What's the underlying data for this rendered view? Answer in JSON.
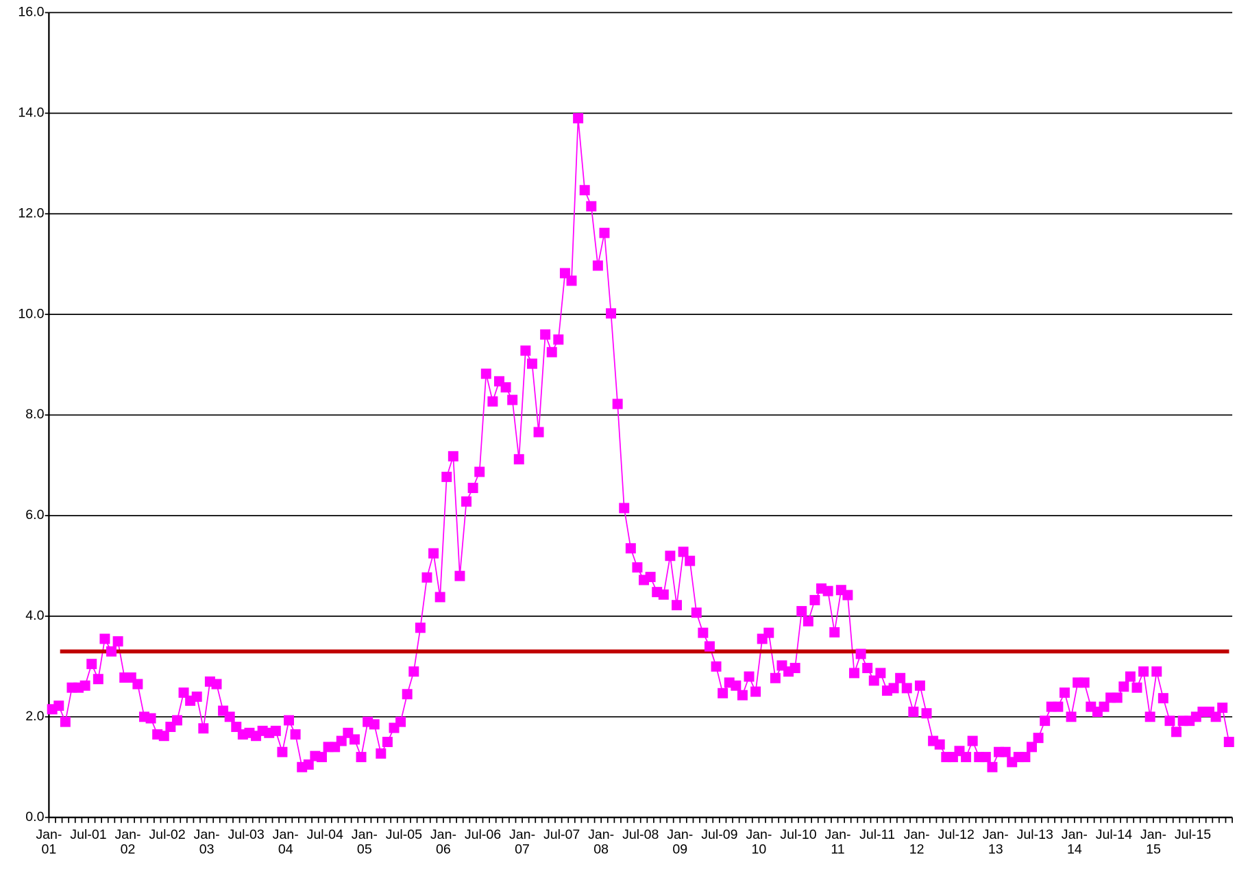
{
  "chart_data": {
    "type": "line",
    "categories": [
      "Jan-01",
      null,
      null,
      null,
      null,
      null,
      "Jul-01",
      null,
      null,
      null,
      null,
      null,
      "Jan-02",
      null,
      null,
      null,
      null,
      null,
      "Jul-02",
      null,
      null,
      null,
      null,
      null,
      "Jan-03",
      null,
      null,
      null,
      null,
      null,
      "Jul-03",
      null,
      null,
      null,
      null,
      null,
      "Jan-04",
      null,
      null,
      null,
      null,
      null,
      "Jul-04",
      null,
      null,
      null,
      null,
      null,
      "Jan-05",
      null,
      null,
      null,
      null,
      null,
      "Jul-05",
      null,
      null,
      null,
      null,
      null,
      "Jan-06",
      null,
      null,
      null,
      null,
      null,
      "Jul-06",
      null,
      null,
      null,
      null,
      null,
      "Jan-07",
      null,
      null,
      null,
      null,
      null,
      "Jul-07",
      null,
      null,
      null,
      null,
      null,
      "Jan-08",
      null,
      null,
      null,
      null,
      null,
      "Jul-08",
      null,
      null,
      null,
      null,
      null,
      "Jan-09",
      null,
      null,
      null,
      null,
      null,
      "Jul-09",
      null,
      null,
      null,
      null,
      null,
      "Jan-10",
      null,
      null,
      null,
      null,
      null,
      "Jul-10",
      null,
      null,
      null,
      null,
      null,
      "Jan-11",
      null,
      null,
      null,
      null,
      null,
      "Jul-11",
      null,
      null,
      null,
      null,
      null,
      "Jan-12",
      null,
      null,
      null,
      null,
      null,
      "Jul-12",
      null,
      null,
      null,
      null,
      null,
      "Jan-13",
      null,
      null,
      null,
      null,
      null,
      "Jul-13",
      null,
      null,
      null,
      null,
      null,
      "Jan-14",
      null,
      null,
      null,
      null,
      null,
      "Jul-14",
      null,
      null,
      null,
      null,
      null,
      "Jan-15",
      null,
      null,
      null,
      null,
      null,
      "Jul-15",
      null,
      null,
      null,
      null,
      null
    ],
    "values": [
      2.15,
      2.22,
      1.9,
      2.58,
      2.58,
      2.62,
      3.05,
      2.75,
      3.55,
      3.3,
      3.5,
      2.78,
      2.78,
      2.65,
      2.0,
      1.97,
      1.65,
      1.62,
      1.8,
      1.93,
      2.48,
      2.32,
      2.4,
      1.77,
      2.7,
      2.65,
      2.12,
      2.0,
      1.8,
      1.65,
      1.68,
      1.62,
      1.72,
      1.68,
      1.72,
      1.3,
      1.93,
      1.65,
      1.0,
      1.05,
      1.22,
      1.2,
      1.4,
      1.4,
      1.52,
      1.68,
      1.55,
      1.2,
      1.9,
      1.85,
      1.27,
      1.5,
      1.78,
      1.9,
      2.45,
      2.9,
      3.77,
      4.77,
      5.25,
      4.38,
      6.77,
      7.18,
      4.8,
      6.28,
      6.55,
      6.87,
      8.82,
      8.27,
      8.67,
      8.55,
      8.3,
      7.12,
      9.28,
      9.02,
      7.66,
      9.6,
      9.25,
      9.5,
      10.82,
      10.67,
      13.9,
      12.47,
      12.15,
      10.97,
      11.62,
      10.02,
      8.22,
      6.15,
      5.35,
      4.97,
      4.72,
      4.78,
      4.48,
      4.43,
      5.2,
      4.22,
      5.28,
      5.1,
      4.07,
      3.67,
      3.4,
      3.0,
      2.47,
      2.68,
      2.62,
      2.43,
      2.8,
      2.5,
      3.55,
      3.67,
      2.77,
      3.02,
      2.9,
      2.97,
      4.1,
      3.9,
      4.32,
      4.55,
      4.5,
      3.68,
      4.52,
      4.42,
      2.87,
      3.25,
      2.97,
      2.72,
      2.87,
      2.52,
      2.57,
      2.77,
      2.57,
      2.1,
      2.62,
      2.07,
      1.52,
      1.45,
      1.2,
      1.2,
      1.32,
      1.2,
      1.52,
      1.2,
      1.2,
      1.0,
      1.3,
      1.3,
      1.1,
      1.2,
      1.2,
      1.4,
      1.58,
      1.92,
      2.2,
      2.2,
      2.48,
      2.0,
      2.68,
      2.68,
      2.2,
      2.1,
      2.2,
      2.38,
      2.38,
      2.6,
      2.8,
      2.58,
      2.9,
      2.0,
      2.9,
      2.37,
      1.92,
      1.7,
      1.92,
      1.92,
      2.0,
      2.1,
      2.1,
      2.0,
      2.18,
      1.5
    ],
    "color": "#ff00ff",
    "reference_line": {
      "value": 3.3,
      "color": "#c00000"
    },
    "ylim": [
      0,
      16
    ],
    "yticks": [
      {
        "value": 0,
        "label": "0.0"
      },
      {
        "value": 2,
        "label": "2.0"
      },
      {
        "value": 4,
        "label": "4.0"
      },
      {
        "value": 6,
        "label": "6.0"
      },
      {
        "value": 8,
        "label": "8.0"
      },
      {
        "value": 10,
        "label": "10.0"
      },
      {
        "value": 12,
        "label": "12.0"
      },
      {
        "value": 14,
        "label": "14.0"
      },
      {
        "value": 16,
        "label": "16.0"
      }
    ],
    "grid": true
  }
}
